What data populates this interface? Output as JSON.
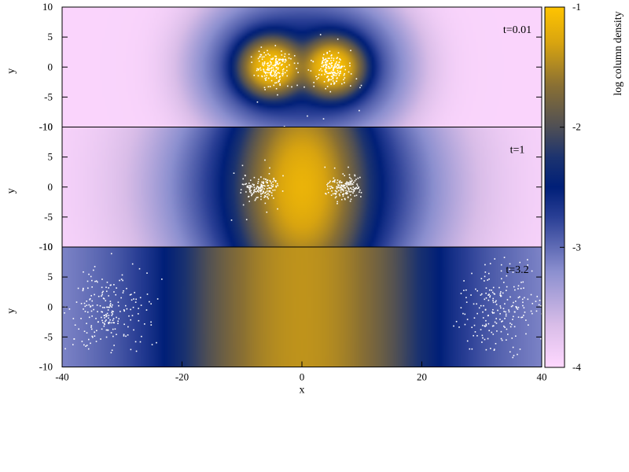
{
  "chart_data": {
    "type": "heatmap",
    "title": "",
    "shared_x_axis": {
      "label": "x",
      "range": [
        -40,
        40
      ],
      "ticks": [
        -40,
        -20,
        0,
        20,
        40
      ]
    },
    "colorbar": {
      "label": "log column density",
      "range": [
        -4,
        -1
      ],
      "ticks": [
        -4,
        -3,
        -2,
        -1
      ],
      "colormap": [
        {
          "value": -4.0,
          "color": "#ffd8ff"
        },
        {
          "value": -3.65,
          "color": "#d9bde8"
        },
        {
          "value": -3.2,
          "color": "#8b8fcf"
        },
        {
          "value": -2.75,
          "color": "#2a3f95"
        },
        {
          "value": -2.5,
          "color": "#001f78"
        },
        {
          "value": -2.25,
          "color": "#1c336f"
        },
        {
          "value": -2.0,
          "color": "#4f4f55"
        },
        {
          "value": -1.65,
          "color": "#8a7033"
        },
        {
          "value": -1.3,
          "color": "#d8a410"
        },
        {
          "value": -1.0,
          "color": "#ffc400"
        }
      ]
    },
    "panels": [
      {
        "time_label": "t=0.01",
        "y_axis": {
          "label": "y",
          "range": [
            -10,
            10
          ],
          "ticks": [
            -10,
            -5,
            0,
            5,
            10
          ]
        },
        "background_log_density": -3.95,
        "density_features": [
          {
            "shape": "gaussian",
            "center": [
              -5,
              0
            ],
            "sigma": [
              2.4,
              2.2
            ],
            "peak_log_density": -1.0
          },
          {
            "shape": "gaussian",
            "center": [
              5,
              0
            ],
            "sigma": [
              2.4,
              2.2
            ],
            "peak_log_density": -1.0
          },
          {
            "shape": "gaussian",
            "center": [
              -5,
              0
            ],
            "sigma": [
              6.5,
              6.0
            ],
            "peak_log_density": -2.6
          },
          {
            "shape": "gaussian",
            "center": [
              5,
              0
            ],
            "sigma": [
              6.5,
              6.0
            ],
            "peak_log_density": -2.6
          }
        ],
        "particle_clusters": [
          {
            "center": [
              -5,
              0
            ],
            "sigma": [
              1.4,
              1.4
            ],
            "count": 170
          },
          {
            "center": [
              5,
              0
            ],
            "sigma": [
              1.4,
              1.4
            ],
            "count": 170
          },
          {
            "center": [
              -4,
              -2
            ],
            "sigma": [
              3.8,
              3.5
            ],
            "count": 20
          },
          {
            "center": [
              4,
              -2
            ],
            "sigma": [
              3.8,
              3.5
            ],
            "count": 20
          }
        ]
      },
      {
        "time_label": "t=1",
        "y_axis": {
          "label": "y",
          "range": [
            -10,
            10
          ],
          "ticks": [
            -10,
            -5,
            0,
            5,
            10
          ]
        },
        "background_log_density": -3.95,
        "density_features": [
          {
            "shape": "gaussian",
            "center": [
              0,
              0
            ],
            "sigma": [
              4.5,
              8.2
            ],
            "peak_log_density": -1.2
          },
          {
            "shape": "gaussian",
            "center": [
              0,
              0
            ],
            "sigma": [
              9.0,
              9.5
            ],
            "peak_log_density": -2.3
          },
          {
            "shape": "gaussian",
            "center": [
              0,
              0
            ],
            "sigma": [
              13.5,
              12.0
            ],
            "peak_log_density": -3.0
          }
        ],
        "particle_clusters": [
          {
            "center": [
              -7,
              0
            ],
            "sigma": [
              1.3,
              0.9
            ],
            "count": 150
          },
          {
            "center": [
              7,
              0
            ],
            "sigma": [
              1.3,
              0.9
            ],
            "count": 150
          },
          {
            "center": [
              -7,
              0
            ],
            "sigma": [
              3.0,
              2.5
            ],
            "count": 15
          },
          {
            "center": [
              7,
              0
            ],
            "sigma": [
              3.0,
              2.5
            ],
            "count": 15
          }
        ]
      },
      {
        "time_label": "t=3.2",
        "y_axis": {
          "label": "y",
          "range": [
            -10,
            10
          ],
          "ticks": [
            -10,
            -5,
            0,
            5,
            10
          ]
        },
        "background_log_density": -3.45,
        "density_features": [
          {
            "shape": "gaussian",
            "center": [
              0,
              0
            ],
            "sigma": [
              9.0,
              100.0
            ],
            "peak_log_density": -1.45
          },
          {
            "shape": "gaussian",
            "center": [
              0,
              0
            ],
            "sigma": [
              20.0,
              100.0
            ],
            "peak_log_density": -2.55
          }
        ],
        "particle_clusters": [
          {
            "center": [
              -33,
              -1
            ],
            "sigma": [
              3.2,
              3.5
            ],
            "count": 220
          },
          {
            "center": [
              33,
              0
            ],
            "sigma": [
              3.2,
              3.5
            ],
            "count": 220
          }
        ]
      }
    ]
  }
}
